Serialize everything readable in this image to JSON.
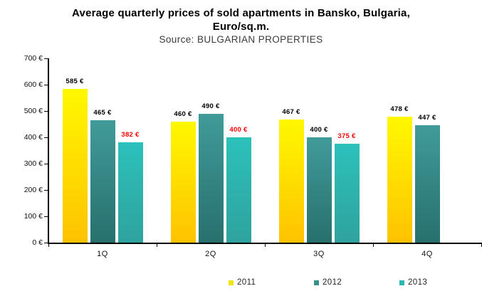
{
  "title": {
    "line1": "Average quarterly prices of sold apartments in Bansko, Bulgaria,",
    "line2": "Euro/sq.m.",
    "source": "Source: BULGARIAN PROPERTIES"
  },
  "chart_data": {
    "type": "bar",
    "title": "Average quarterly prices of sold apartments in Bansko, Bulgaria, Euro/sq.m.",
    "subtitle": "Source: BULGARIAN PROPERTIES",
    "categories": [
      "1Q",
      "2Q",
      "3Q",
      "4Q"
    ],
    "series": [
      {
        "name": "2011",
        "values": [
          585,
          460,
          467,
          478
        ],
        "color": "#F2E20D",
        "gradient_top": "#FFF800",
        "gradient_bottom": "#FEC200",
        "label_color": "#000000"
      },
      {
        "name": "2012",
        "values": [
          465,
          490,
          400,
          447
        ],
        "color": "#398F8C",
        "gradient_top": "#419B98",
        "gradient_bottom": "#27706E",
        "label_color": "#000000"
      },
      {
        "name": "2013",
        "values": [
          382,
          400,
          375,
          null
        ],
        "color": "#29B9B2",
        "gradient_top": "#2CC1BB",
        "gradient_bottom": "#2FA29E",
        "label_color": "#FE0000"
      }
    ],
    "value_suffix": " €",
    "y_ticks": [
      "700 €",
      "600 €",
      "500 €",
      "400 €",
      "300 €",
      "200 €",
      "100 €",
      "0 €"
    ],
    "xlabel": "",
    "ylabel": "",
    "ylim": [
      0,
      700
    ],
    "grid": false,
    "legend_position": "bottom",
    "axis_color": "#000000"
  }
}
